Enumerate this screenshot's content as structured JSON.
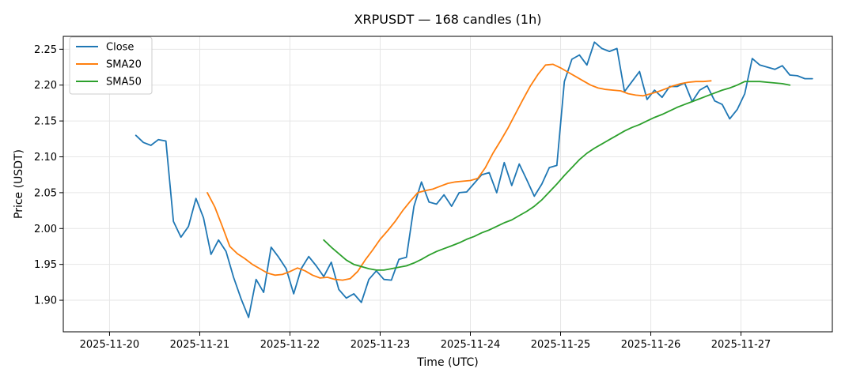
{
  "chart_data": {
    "type": "line",
    "title": "XRPUSDT — 168 candles (1h)",
    "xlabel": "Time (UTC)",
    "ylabel": "Price (USDT)",
    "x_domain": [
      "2025-11-19T21:00",
      "2025-11-27T15:00"
    ],
    "xlim": [
      "2025-11-20T00:00",
      "2025-11-27T16:00"
    ],
    "ylim": [
      1.856,
      2.268
    ],
    "x_ticks": [
      "2025-11-20",
      "2025-11-21",
      "2025-11-22",
      "2025-11-23",
      "2025-11-24",
      "2025-11-25",
      "2025-11-26",
      "2025-11-27"
    ],
    "y_ticks": [
      1.9,
      1.95,
      2.0,
      2.05,
      2.1,
      2.15,
      2.2,
      2.25
    ],
    "grid": true,
    "legend_position": "top-left",
    "series": [
      {
        "name": "Close",
        "color": "#1f77b4",
        "start": "2025-11-20T07:00",
        "step_hours": 2,
        "values": [
          2.13,
          2.12,
          2.116,
          2.124,
          2.122,
          2.01,
          1.988,
          2.003,
          2.042,
          2.015,
          1.964,
          1.984,
          1.968,
          1.932,
          1.902,
          1.876,
          1.929,
          1.911,
          1.974,
          1.96,
          1.944,
          1.909,
          1.944,
          1.961,
          1.948,
          1.933,
          1.953,
          1.915,
          1.903,
          1.909,
          1.897,
          1.929,
          1.941,
          1.929,
          1.928,
          1.957,
          1.96,
          2.031,
          2.065,
          2.037,
          2.034,
          2.047,
          2.031,
          2.05,
          2.051,
          2.063,
          2.075,
          2.078,
          2.05,
          2.092,
          2.06,
          2.09,
          2.068,
          2.045,
          2.062,
          2.085,
          2.088,
          2.205,
          2.236,
          2.242,
          2.228,
          2.26,
          2.251,
          2.247,
          2.251,
          2.191,
          2.205,
          2.219,
          2.18,
          2.193,
          2.183,
          2.198,
          2.198,
          2.203,
          2.177,
          2.193,
          2.199,
          2.178,
          2.173,
          2.153,
          2.166,
          2.188,
          2.237,
          2.228,
          2.225,
          2.222,
          2.227,
          2.214,
          2.213,
          2.209,
          2.209
        ]
      },
      {
        "name": "SMA20",
        "color": "#ff7f0e",
        "start": "2025-11-21T02:00",
        "step_hours": 2,
        "values": [
          2.05,
          2.03,
          2.003,
          1.975,
          1.965,
          1.958,
          1.95,
          1.944,
          1.938,
          1.935,
          1.936,
          1.94,
          1.945,
          1.941,
          1.935,
          1.931,
          1.932,
          1.929,
          1.928,
          1.93,
          1.94,
          1.956,
          1.97,
          1.985,
          1.997,
          2.01,
          2.025,
          2.038,
          2.05,
          2.053,
          2.055,
          2.059,
          2.063,
          2.065,
          2.066,
          2.067,
          2.07,
          2.085,
          2.105,
          2.122,
          2.14,
          2.16,
          2.18,
          2.199,
          2.215,
          2.228,
          2.229,
          2.224,
          2.218,
          2.212,
          2.206,
          2.2,
          2.196,
          2.194,
          2.193,
          2.192,
          2.188,
          2.186,
          2.185,
          2.188,
          2.191,
          2.195,
          2.199,
          2.202,
          2.204,
          2.205,
          2.205,
          2.206
        ]
      },
      {
        "name": "SMA50",
        "color": "#2ca02c",
        "start": "2025-11-22T09:00",
        "step_hours": 2,
        "values": [
          1.984,
          1.974,
          1.965,
          1.956,
          1.95,
          1.947,
          1.944,
          1.942,
          1.942,
          1.944,
          1.946,
          1.948,
          1.952,
          1.957,
          1.963,
          1.968,
          1.972,
          1.976,
          1.98,
          1.985,
          1.989,
          1.994,
          1.998,
          2.003,
          2.008,
          2.012,
          2.018,
          2.024,
          2.031,
          2.04,
          2.051,
          2.062,
          2.074,
          2.085,
          2.096,
          2.105,
          2.112,
          2.118,
          2.124,
          2.13,
          2.136,
          2.141,
          2.145,
          2.15,
          2.155,
          2.159,
          2.164,
          2.169,
          2.173,
          2.177,
          2.181,
          2.185,
          2.189,
          2.193,
          2.196,
          2.2,
          2.205,
          2.205,
          2.205,
          2.204,
          2.203,
          2.202,
          2.2
        ]
      }
    ]
  }
}
